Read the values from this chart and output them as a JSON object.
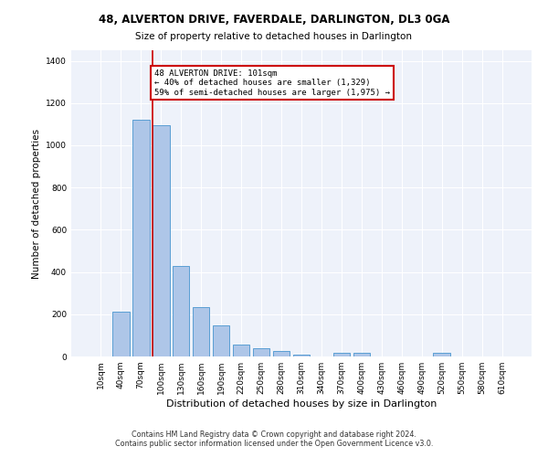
{
  "title1": "48, ALVERTON DRIVE, FAVERDALE, DARLINGTON, DL3 0GA",
  "title2": "Size of property relative to detached houses in Darlington",
  "xlabel": "Distribution of detached houses by size in Darlington",
  "ylabel": "Number of detached properties",
  "categories": [
    "10sqm",
    "40sqm",
    "70sqm",
    "100sqm",
    "130sqm",
    "160sqm",
    "190sqm",
    "220sqm",
    "250sqm",
    "280sqm",
    "310sqm",
    "340sqm",
    "370sqm",
    "400sqm",
    "430sqm",
    "460sqm",
    "490sqm",
    "520sqm",
    "550sqm",
    "580sqm",
    "610sqm"
  ],
  "values": [
    0,
    210,
    1120,
    1095,
    430,
    232,
    147,
    57,
    38,
    25,
    8,
    0,
    17,
    17,
    0,
    0,
    0,
    17,
    0,
    0,
    0
  ],
  "bar_color": "#aec6e8",
  "bar_edge_color": "#5a9fd4",
  "annotation_line0": "48 ALVERTON DRIVE: 101sqm",
  "annotation_line1": "← 40% of detached houses are smaller (1,329)",
  "annotation_line2": "59% of semi-detached houses are larger (1,975) →",
  "annotation_box_color": "#ffffff",
  "annotation_border_color": "#cc0000",
  "vline_color": "#cc0000",
  "ylim": [
    0,
    1450
  ],
  "yticks": [
    0,
    200,
    400,
    600,
    800,
    1000,
    1200,
    1400
  ],
  "bg_color": "#eef2fa",
  "footer1": "Contains HM Land Registry data © Crown copyright and database right 2024.",
  "footer2": "Contains public sector information licensed under the Open Government Licence v3.0."
}
